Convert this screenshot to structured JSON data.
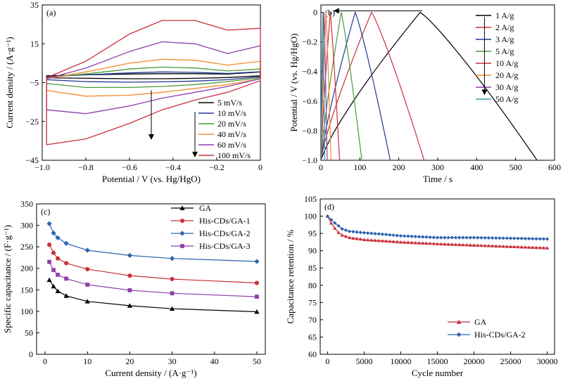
{
  "chart_data": [
    {
      "panel": "(a)",
      "type": "line",
      "xlabel": "Potential / V (vs. Hg/HgO)",
      "ylabel": "Current density / (A·g⁻¹)",
      "xlim": [
        -1.0,
        0.0
      ],
      "ylim": [
        -45,
        35
      ],
      "xticks": [
        "−1.0",
        "−0.8",
        "−0.6",
        "−0.4",
        "−0.2",
        "0"
      ],
      "yticks": [
        "−45",
        "−25",
        "−5",
        "15",
        "35"
      ],
      "xtick_values": [
        -1.0,
        -0.8,
        -0.6,
        -0.4,
        -0.2,
        0.0
      ],
      "ytick_values": [
        -45,
        -25,
        -5,
        15,
        35
      ],
      "legend_position": "lower-right",
      "series": [
        {
          "name": "5 mV/s",
          "color": "#000000",
          "upper": [
            -1.5,
            -1.0,
            -0.6,
            -0.4,
            -0.4,
            -0.6,
            0.5
          ],
          "lower": [
            -2.5,
            -2.8,
            -3.0,
            -3.0,
            -2.8,
            -2.4,
            -1.5
          ]
        },
        {
          "name": "10 mV/s",
          "color": "#1f3a93",
          "upper": [
            -2.0,
            -1.0,
            0.0,
            0.5,
            0.3,
            -0.3,
            0.6
          ],
          "lower": [
            -3.5,
            -4.5,
            -4.8,
            -4.6,
            -4.2,
            -3.5,
            -2.0
          ]
        },
        {
          "name": "20 mV/s",
          "color": "#4a9a38",
          "upper": [
            -2.5,
            -0.5,
            2.0,
            3.0,
            2.5,
            1.0,
            2.0
          ],
          "lower": [
            -5.5,
            -7.5,
            -7.5,
            -7.0,
            -6.0,
            -4.5,
            -2.5
          ]
        },
        {
          "name": "40 mV/s",
          "color": "#f08c2e",
          "upper": [
            -3.0,
            0.5,
            5.0,
            7.0,
            6.5,
            4.0,
            6.0
          ],
          "lower": [
            -9.0,
            -12.0,
            -11.5,
            -10.0,
            -8.0,
            -6.0,
            -3.0
          ]
        },
        {
          "name": "60 mV/s",
          "color": "#8e3fa8",
          "upper": [
            -3.0,
            2.5,
            11.0,
            16.0,
            15.0,
            10.0,
            14.0
          ],
          "lower": [
            -19.0,
            -21.0,
            -17.0,
            -13.0,
            -10.0,
            -7.0,
            -3.0
          ]
        },
        {
          "name": "100 mV/s",
          "color": "#c8303a",
          "upper": [
            -2.5,
            6.0,
            20.0,
            27.0,
            27.0,
            22.0,
            23.0
          ],
          "lower": [
            -37.0,
            -34.0,
            -26.0,
            -19.0,
            -14.0,
            -10.0,
            -4.0
          ]
        }
      ]
    },
    {
      "panel": "(b)",
      "type": "line",
      "xlabel": "Time / s",
      "ylabel": "Potential / V (vs. Hg/HgO)",
      "xlim": [
        0,
        600
      ],
      "ylim": [
        -1.0,
        0.05
      ],
      "xticks": [
        "0",
        "100",
        "200",
        "300",
        "400",
        "500",
        "600"
      ],
      "yticks": [
        "−1.0",
        "−0.8",
        "−0.6",
        "−0.4",
        "−0.2",
        "0"
      ],
      "xtick_values": [
        0,
        100,
        200,
        300,
        400,
        500,
        600
      ],
      "ytick_values": [
        -1.0,
        -0.8,
        -0.6,
        -0.4,
        -0.2,
        0.0
      ],
      "legend_position": "top-right",
      "series": [
        {
          "name": "1 A/g",
          "color": "#000000",
          "peak_time": 255,
          "end_time": 555
        },
        {
          "name": "2 A/g",
          "color": "#c8303a",
          "peak_time": 130,
          "end_time": 265
        },
        {
          "name": "3 A/g",
          "color": "#1f3a93",
          "peak_time": 88,
          "end_time": 178
        },
        {
          "name": "5 A/g",
          "color": "#4a9a38",
          "peak_time": 52,
          "end_time": 105
        },
        {
          "name": "10 A/g",
          "color": "#c8303a",
          "peak_time": 24,
          "end_time": 48
        },
        {
          "name": "20 A/g",
          "color": "#f08c2e",
          "peak_time": 13,
          "end_time": 26
        },
        {
          "name": "30 A/g",
          "color": "#8e3fa8",
          "peak_time": 8,
          "end_time": 16
        },
        {
          "name": "50 A/g",
          "color": "#3a9aa0",
          "peak_time": 5,
          "end_time": 10
        }
      ]
    },
    {
      "panel": "(c)",
      "type": "line",
      "xlabel": "Current density / (A·g⁻¹)",
      "ylabel": "Specific capacitance / (F·g⁻¹)",
      "xlim": [
        -2,
        52
      ],
      "ylim": [
        0,
        350
      ],
      "xticks": [
        "0",
        "10",
        "20",
        "30",
        "40",
        "50"
      ],
      "yticks": [
        "0",
        "50",
        "100",
        "150",
        "200",
        "250",
        "300",
        "350"
      ],
      "xtick_values": [
        0,
        10,
        20,
        30,
        40,
        50
      ],
      "ytick_values": [
        0,
        50,
        100,
        150,
        200,
        250,
        300,
        350
      ],
      "legend_position": "top-right",
      "x": [
        1,
        2,
        3,
        5,
        10,
        20,
        30,
        50
      ],
      "series": [
        {
          "name": "GA",
          "color": "#000000",
          "marker": "triangle",
          "values": [
            173,
            158,
            147,
            136,
            123,
            113,
            106,
            99
          ]
        },
        {
          "name": "His-CDs/GA-1",
          "color": "#c8303a",
          "marker": "circle",
          "values": [
            255,
            236,
            223,
            212,
            198,
            183,
            175,
            166
          ]
        },
        {
          "name": "His-CDs/GA-2",
          "color": "#2b63b0",
          "marker": "diamond",
          "values": [
            304,
            282,
            271,
            258,
            242,
            230,
            223,
            216
          ]
        },
        {
          "name": "His-CDs/GA-3",
          "color": "#8e3fa8",
          "marker": "square",
          "values": [
            215,
            196,
            185,
            176,
            162,
            149,
            142,
            134
          ]
        }
      ]
    },
    {
      "panel": "(d)",
      "type": "line",
      "xlabel": "Cycle number",
      "ylabel": "Capacitance retention / %",
      "xlim": [
        -1000,
        31000
      ],
      "ylim": [
        60,
        105
      ],
      "xticks": [
        "0",
        "5000",
        "10000",
        "15000",
        "20000",
        "25000",
        "30000"
      ],
      "yticks": [
        "60",
        "65",
        "70",
        "75",
        "80",
        "85",
        "90",
        "95",
        "100",
        "105"
      ],
      "xtick_values": [
        0,
        5000,
        10000,
        15000,
        20000,
        25000,
        30000
      ],
      "ytick_values": [
        60,
        65,
        70,
        75,
        80,
        85,
        90,
        95,
        100,
        105
      ],
      "legend_position": "bottom-right",
      "x": [
        0,
        500,
        1000,
        1500,
        2000,
        3000,
        5000,
        8000,
        10000,
        15000,
        20000,
        25000,
        30000
      ],
      "series": [
        {
          "name": "GA",
          "color": "#c8303a",
          "marker": "triangle",
          "values": [
            100,
            98.0,
            96.5,
            95.3,
            94.5,
            93.8,
            93.2,
            92.8,
            92.5,
            92.0,
            91.6,
            91.2,
            90.8
          ]
        },
        {
          "name": "His-CDs/GA-2",
          "color": "#2b63b0",
          "marker": "diamond",
          "values": [
            100,
            99.0,
            98.0,
            97.2,
            96.3,
            95.6,
            95.2,
            94.7,
            94.3,
            93.8,
            93.8,
            93.6,
            93.4
          ]
        }
      ]
    }
  ]
}
